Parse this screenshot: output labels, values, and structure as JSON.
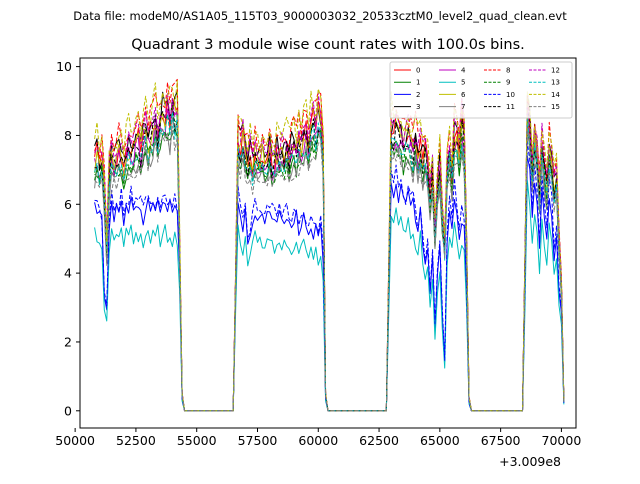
{
  "suptitle": "Data file: modeM0/AS1A05_115T03_9000003032_20533cztM0_level2_quad_clean.evt",
  "chart_data": {
    "type": "line",
    "title": "Quadrant 3 module wise count rates with 100.0s bins.",
    "xlabel": "",
    "ylabel": "",
    "x_offset_label": "+3.009e8",
    "xlim": [
      50200,
      70600
    ],
    "ylim": [
      -0.5,
      10.25
    ],
    "x_ticks": [
      50000,
      52500,
      55000,
      57500,
      60000,
      62500,
      65000,
      67500,
      70000
    ],
    "x_tick_labels": [
      "50000",
      "52500",
      "55000",
      "57500",
      "60000",
      "62500",
      "65000",
      "67500",
      "70000"
    ],
    "y_ticks": [
      0,
      2,
      4,
      6,
      8,
      10
    ],
    "y_tick_labels": [
      "0",
      "2",
      "4",
      "6",
      "8",
      "10"
    ],
    "legend_position": "top-right",
    "x_start": 50800,
    "x_step": 100,
    "templates": {
      "A": [
        7.6,
        7.8,
        7.4,
        7.7,
        6.8,
        5.0,
        7.2,
        7.6,
        7.5,
        7.7,
        7.9,
        7.6,
        7.4,
        7.8,
        8.0,
        7.7,
        7.9,
        8.1,
        8.2,
        7.9,
        8.3,
        8.5,
        8.2,
        8.4,
        8.6,
        8.9,
        8.4,
        8.8,
        9.0,
        8.7,
        9.1,
        8.8,
        9.3,
        9.0,
        9.2,
        5.0,
        0.5,
        0.0,
        0.0,
        0.0,
        0.0,
        0.0,
        0.0,
        0.0,
        0.0,
        0.0,
        0.0,
        0.0,
        0.0,
        0.0,
        0.0,
        0.0,
        0.0,
        0.0,
        0.0,
        0.0,
        0.0,
        0.0,
        4.0,
        8.2,
        8.0,
        8.3,
        7.9,
        7.6,
        7.8,
        7.5,
        7.9,
        7.7,
        7.6,
        7.8,
        7.4,
        7.7,
        7.9,
        7.5,
        7.6,
        7.8,
        7.7,
        7.9,
        7.8,
        8.0,
        7.7,
        7.9,
        8.1,
        7.8,
        8.2,
        8.0,
        8.3,
        8.4,
        8.2,
        8.6,
        8.8,
        8.5,
        9.0,
        8.9,
        8.0,
        0.5,
        0.0,
        0.0,
        0.0,
        0.0,
        0.0,
        0.0,
        0.0,
        0.0,
        0.0,
        0.0,
        0.0,
        0.0,
        0.0,
        0.0,
        0.0,
        0.0,
        0.0,
        0.0,
        0.0,
        0.0,
        0.0,
        0.0,
        0.0,
        0.0,
        0.0,
        4.2,
        8.6,
        8.4,
        8.7,
        8.5,
        8.2,
        8.0,
        8.3,
        8.4,
        8.1,
        7.9,
        8.2,
        7.8,
        8.0,
        7.6,
        7.9,
        7.4,
        6.5,
        7.2,
        5.5,
        6.8,
        7.5,
        6.0,
        5.0,
        7.4,
        8.0,
        7.2,
        8.4,
        8.6,
        7.8,
        8.8,
        8.2,
        5.0,
        0.4,
        0.0,
        0.0,
        0.0,
        0.0,
        0.0,
        0.0,
        0.0,
        0.0,
        0.0,
        0.0,
        0.0,
        0.0,
        0.0,
        0.0,
        0.0,
        0.0,
        0.0,
        0.0,
        0.0,
        0.0,
        0.0,
        0.0,
        4.5,
        9.2,
        8.6,
        7.6,
        8.4,
        7.8,
        6.6,
        8.2,
        7.4,
        6.8,
        8.0,
        7.6,
        6.8,
        7.2,
        5.2,
        3.8,
        0.3
      ],
      "B": [
        5.3,
        5.1,
        5.0,
        4.9,
        3.0,
        2.6,
        4.8,
        5.3,
        5.0,
        5.2,
        5.1,
        5.4,
        5.0,
        5.3,
        5.1,
        5.5,
        5.2,
        5.4,
        5.1,
        5.3,
        5.0,
        5.2,
        5.4,
        5.1,
        5.3,
        5.2,
        5.5,
        5.1,
        5.3,
        5.4,
        5.2,
        5.3,
        5.1,
        5.2,
        5.0,
        3.5,
        0.3,
        0.0,
        0.0,
        0.0,
        0.0,
        0.0,
        0.0,
        0.0,
        0.0,
        0.0,
        0.0,
        0.0,
        0.0,
        0.0,
        0.0,
        0.0,
        0.0,
        0.0,
        0.0,
        0.0,
        0.0,
        0.0,
        3.0,
        5.6,
        5.0,
        4.8,
        5.2,
        4.2,
        4.6,
        5.0,
        5.2,
        4.9,
        5.1,
        5.0,
        4.8,
        5.2,
        5.0,
        5.1,
        4.9,
        5.0,
        5.2,
        4.8,
        5.0,
        5.1,
        4.9,
        4.8,
        5.0,
        5.1,
        4.7,
        4.9,
        5.0,
        4.8,
        4.7,
        4.9,
        4.6,
        4.8,
        4.5,
        4.7,
        4.0,
        0.3,
        0.0,
        0.0,
        0.0,
        0.0,
        0.0,
        0.0,
        0.0,
        0.0,
        0.0,
        0.0,
        0.0,
        0.0,
        0.0,
        0.0,
        0.0,
        0.0,
        0.0,
        0.0,
        0.0,
        0.0,
        0.0,
        0.0,
        0.0,
        0.0,
        0.0,
        3.0,
        5.8,
        5.6,
        5.9,
        5.4,
        5.7,
        5.5,
        5.3,
        5.6,
        5.2,
        5.4,
        5.0,
        4.6,
        5.2,
        4.4,
        3.8,
        4.2,
        3.0,
        4.0,
        2.2,
        3.5,
        4.2,
        2.5,
        1.3,
        4.4,
        5.2,
        4.8,
        5.6,
        5.2,
        4.6,
        5.0,
        4.8,
        3.0,
        0.2,
        0.0,
        0.0,
        0.0,
        0.0,
        0.0,
        0.0,
        0.0,
        0.0,
        0.0,
        0.0,
        0.0,
        0.0,
        0.0,
        0.0,
        0.0,
        0.0,
        0.0,
        0.0,
        0.0,
        0.0,
        0.0,
        0.0,
        3.0,
        6.8,
        6.2,
        5.2,
        6.0,
        5.4,
        4.2,
        5.8,
        5.0,
        4.4,
        5.6,
        5.2,
        4.0,
        4.6,
        3.2,
        2.6,
        0.2
      ]
    },
    "series": [
      {
        "name": "0",
        "color": "#ff0000",
        "dash": "",
        "base": "A",
        "scale": 0.96,
        "wig": 0.35
      },
      {
        "name": "1",
        "color": "#008000",
        "dash": "",
        "base": "A",
        "scale": 0.89,
        "wig": 0.3
      },
      {
        "name": "2",
        "color": "#0000ff",
        "dash": "",
        "base": "B",
        "scale": 1.12,
        "wig": 0.35
      },
      {
        "name": "3",
        "color": "#000000",
        "dash": "",
        "base": "A",
        "scale": 0.98,
        "wig": 0.4
      },
      {
        "name": "4",
        "color": "#bf00bf",
        "dash": "",
        "base": "A",
        "scale": 0.93,
        "wig": 0.35
      },
      {
        "name": "5",
        "color": "#00bfbf",
        "dash": "",
        "base": "B",
        "scale": 0.97,
        "wig": 0.3
      },
      {
        "name": "6",
        "color": "#bfbf00",
        "dash": "",
        "base": "A",
        "scale": 0.95,
        "wig": 0.35
      },
      {
        "name": "7",
        "color": "#808080",
        "dash": "",
        "base": "A",
        "scale": 0.88,
        "wig": 0.3
      },
      {
        "name": "8",
        "color": "#ff0000",
        "dash": "4,2",
        "base": "A",
        "scale": 1.02,
        "wig": 0.35
      },
      {
        "name": "9",
        "color": "#008000",
        "dash": "4,2",
        "base": "A",
        "scale": 0.9,
        "wig": 0.3
      },
      {
        "name": "10",
        "color": "#0000ff",
        "dash": "4,2",
        "base": "B",
        "scale": 1.17,
        "wig": 0.35
      },
      {
        "name": "11",
        "color": "#000000",
        "dash": "4,2",
        "base": "A",
        "scale": 0.94,
        "wig": 0.35
      },
      {
        "name": "12",
        "color": "#bf00bf",
        "dash": "4,2",
        "base": "A",
        "scale": 0.99,
        "wig": 0.35
      },
      {
        "name": "13",
        "color": "#00bfbf",
        "dash": "4,2",
        "base": "A",
        "scale": 0.91,
        "wig": 0.3
      },
      {
        "name": "14",
        "color": "#bfbf00",
        "dash": "4,2",
        "base": "A",
        "scale": 1.03,
        "wig": 0.4
      },
      {
        "name": "15",
        "color": "#808080",
        "dash": "4,2",
        "base": "A",
        "scale": 0.87,
        "wig": 0.3
      }
    ]
  }
}
